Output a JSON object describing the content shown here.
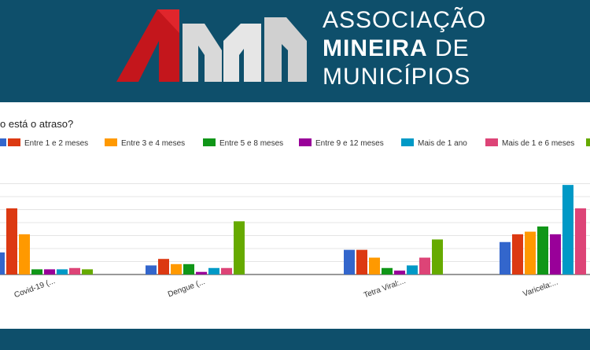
{
  "brand": {
    "logo_letters": "AMM",
    "line1": "ASSOCIAÇÃO",
    "line2_bold": "MINEIRA",
    "line2_rest": " DE",
    "line3": "MUNICÍPIOS"
  },
  "colors": {
    "header_bg": "#0e4f6b",
    "logo_red": "#c4161c",
    "logo_grey": "#dcdcdc"
  },
  "chart_data": {
    "type": "bar",
    "title": "o está o atraso?",
    "categories": [
      "Covid-19 (...",
      "Dengue (...",
      "Tetra Viral:...",
      "Varicela:..."
    ],
    "series": [
      {
        "name": "",
        "color": "#3366cc",
        "values": [
          17,
          7,
          19,
          25
        ]
      },
      {
        "name": "Entre 1 e 2 meses",
        "color": "#dc3912",
        "values": [
          51,
          12,
          19,
          31
        ]
      },
      {
        "name": "Entre 3 e 4 meses",
        "color": "#ff9900",
        "values": [
          31,
          8,
          13,
          33
        ]
      },
      {
        "name": "Entre 5 e 8 meses",
        "color": "#109618",
        "values": [
          4,
          8,
          5,
          37
        ]
      },
      {
        "name": "Entre 9 e 12 meses",
        "color": "#990099",
        "values": [
          4,
          2,
          3,
          31
        ]
      },
      {
        "name": "Mais de 1 ano",
        "color": "#0099c6",
        "values": [
          4,
          5,
          7,
          69
        ]
      },
      {
        "name": "Mais de 1 e 6 meses",
        "color": "#dd4477",
        "values": [
          5,
          5,
          13,
          51
        ]
      },
      {
        "name": "",
        "color": "#66aa00",
        "values": [
          4,
          41,
          27,
          0
        ]
      }
    ],
    "ylim": [
      0,
      70
    ],
    "grid": true,
    "legend": "top"
  }
}
